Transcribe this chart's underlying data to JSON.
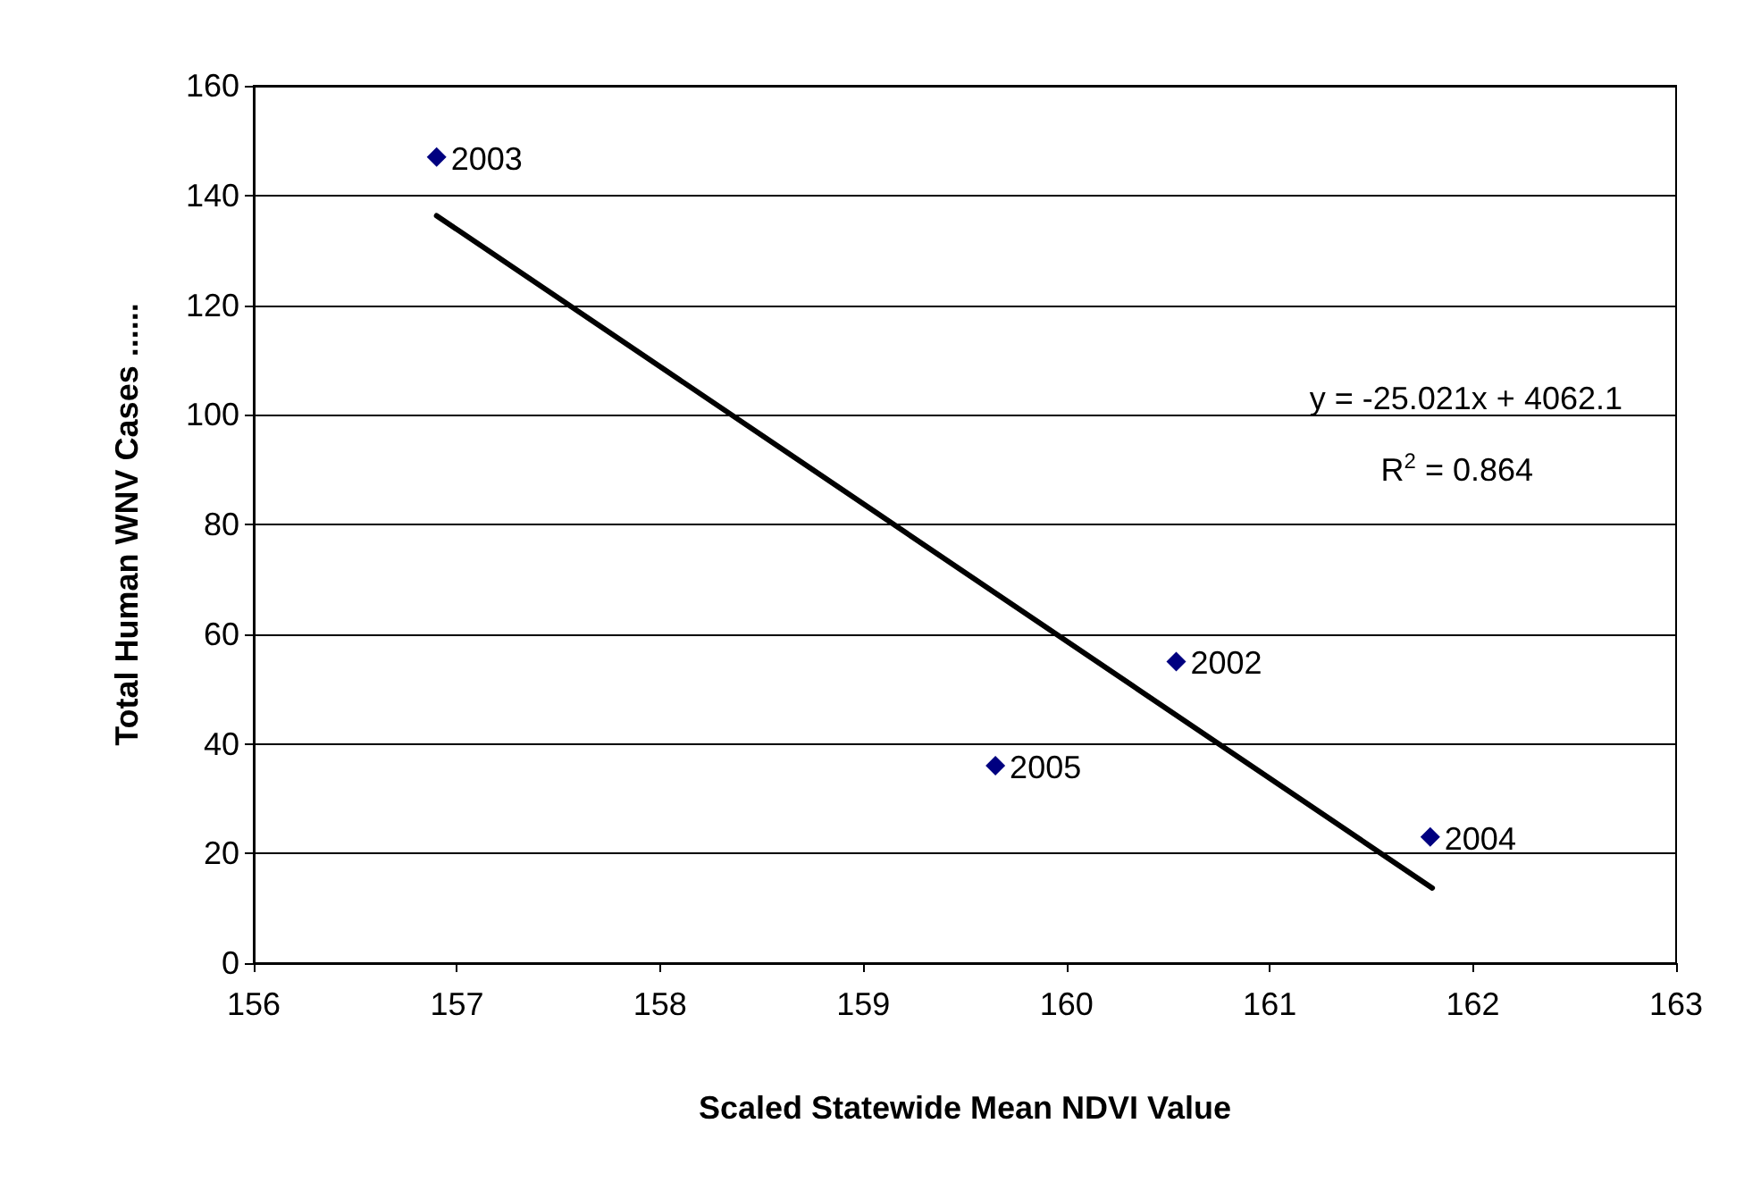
{
  "chart_data": {
    "type": "scatter",
    "xlabel": "Scaled Statewide Mean NDVI Value",
    "ylabel": "Total Human WNV Cases ......",
    "series": [
      {
        "color": "#000080",
        "x": [
          156.9,
          159.65,
          160.54,
          161.79
        ],
        "values": [
          147,
          36,
          55,
          23
        ],
        "marker": "diamond"
      },
      {
        "type": "line",
        "color": "#000000",
        "x": [
          156.9,
          161.8
        ],
        "values": [
          136.3,
          13.7
        ],
        "marker": "none",
        "line_style": "solid"
      }
    ],
    "annotations": [
      "y = -25.021x + 4062.1",
      "R$^{2}$ = 0.864",
      {
        "text": "2003",
        "x": 156.9,
        "y": 147
      },
      {
        "text": "2005",
        "x": 159.65,
        "y": 36
      },
      {
        "text": "2002",
        "x": 160.54,
        "y": 55
      },
      {
        "text": "2004",
        "x": 161.79,
        "y": 23
      }
    ],
    "xlim": [
      156,
      163
    ],
    "xticks": [
      156,
      157,
      158,
      159,
      160,
      161,
      162,
      163
    ],
    "ylim": [
      0,
      160
    ],
    "yticks": [
      0,
      20,
      40,
      60,
      80,
      100,
      120,
      140,
      160
    ],
    "grid": "y"
  }
}
